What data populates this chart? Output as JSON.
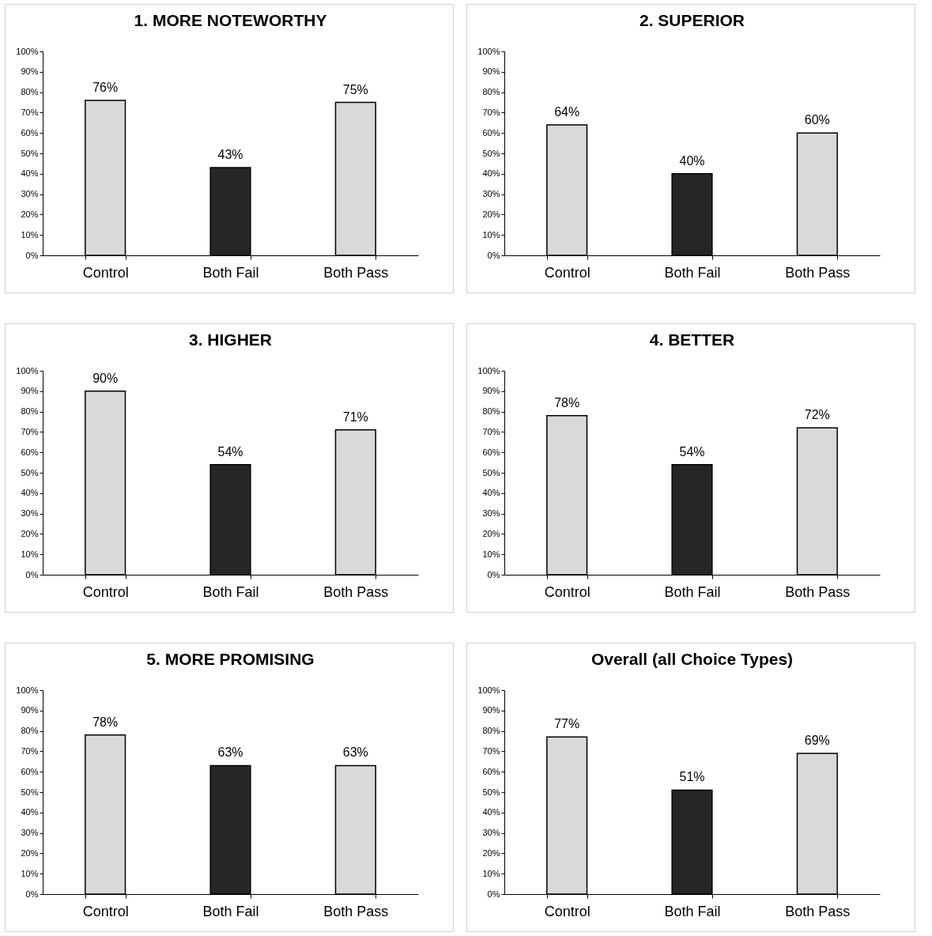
{
  "chart_data": [
    {
      "type": "bar",
      "title": "1. MORE NOTEWORTHY",
      "categories": [
        "Control",
        "Both Fail",
        "Both Pass"
      ],
      "values": [
        76,
        43,
        75
      ],
      "colors": [
        "#d9d9d9",
        "#262626",
        "#d9d9d9"
      ],
      "value_labels": [
        "76%",
        "43%",
        "75%"
      ],
      "ylim": [
        0,
        100
      ],
      "yticks": [
        {
          "value": 0,
          "label": "0%"
        },
        {
          "value": 10,
          "label": "10%"
        },
        {
          "value": 20,
          "label": "20%"
        },
        {
          "value": 30,
          "label": "30%"
        },
        {
          "value": 40,
          "label": "40%"
        },
        {
          "value": 50,
          "label": "50%"
        },
        {
          "value": 60,
          "label": "60%"
        },
        {
          "value": 70,
          "label": "70%"
        },
        {
          "value": 80,
          "label": "80%"
        },
        {
          "value": 90,
          "label": "90%"
        },
        {
          "value": 100,
          "label": "100%"
        }
      ]
    },
    {
      "type": "bar",
      "title": "2. SUPERIOR",
      "categories": [
        "Control",
        "Both Fail",
        "Both Pass"
      ],
      "values": [
        64,
        40,
        60
      ],
      "colors": [
        "#d9d9d9",
        "#262626",
        "#d9d9d9"
      ],
      "value_labels": [
        "64%",
        "40%",
        "60%"
      ],
      "ylim": [
        0,
        100
      ],
      "yticks": [
        {
          "value": 0,
          "label": "0%"
        },
        {
          "value": 10,
          "label": "10%"
        },
        {
          "value": 20,
          "label": "20%"
        },
        {
          "value": 30,
          "label": "30%"
        },
        {
          "value": 40,
          "label": "40%"
        },
        {
          "value": 50,
          "label": "50%"
        },
        {
          "value": 60,
          "label": "60%"
        },
        {
          "value": 70,
          "label": "70%"
        },
        {
          "value": 80,
          "label": "80%"
        },
        {
          "value": 90,
          "label": "90%"
        },
        {
          "value": 100,
          "label": "100%"
        }
      ]
    },
    {
      "type": "bar",
      "title": "3. HIGHER",
      "categories": [
        "Control",
        "Both Fail",
        "Both Pass"
      ],
      "values": [
        90,
        54,
        71
      ],
      "colors": [
        "#d9d9d9",
        "#262626",
        "#d9d9d9"
      ],
      "value_labels": [
        "90%",
        "54%",
        "71%"
      ],
      "ylim": [
        0,
        100
      ],
      "yticks": [
        {
          "value": 0,
          "label": "0%"
        },
        {
          "value": 10,
          "label": "10%"
        },
        {
          "value": 20,
          "label": "20%"
        },
        {
          "value": 30,
          "label": "30%"
        },
        {
          "value": 40,
          "label": "40%"
        },
        {
          "value": 50,
          "label": "50%"
        },
        {
          "value": 60,
          "label": "60%"
        },
        {
          "value": 70,
          "label": "70%"
        },
        {
          "value": 80,
          "label": "80%"
        },
        {
          "value": 90,
          "label": "90%"
        },
        {
          "value": 100,
          "label": "100%"
        }
      ]
    },
    {
      "type": "bar",
      "title": "4. BETTER",
      "categories": [
        "Control",
        "Both Fail",
        "Both Pass"
      ],
      "values": [
        78,
        54,
        72
      ],
      "colors": [
        "#d9d9d9",
        "#262626",
        "#d9d9d9"
      ],
      "value_labels": [
        "78%",
        "54%",
        "72%"
      ],
      "ylim": [
        0,
        100
      ],
      "yticks": [
        {
          "value": 0,
          "label": "0%"
        },
        {
          "value": 10,
          "label": "10%"
        },
        {
          "value": 20,
          "label": "20%"
        },
        {
          "value": 30,
          "label": "30%"
        },
        {
          "value": 40,
          "label": "40%"
        },
        {
          "value": 50,
          "label": "50%"
        },
        {
          "value": 60,
          "label": "60%"
        },
        {
          "value": 70,
          "label": "70%"
        },
        {
          "value": 80,
          "label": "80%"
        },
        {
          "value": 90,
          "label": "90%"
        },
        {
          "value": 100,
          "label": "100%"
        }
      ]
    },
    {
      "type": "bar",
      "title": "5. MORE PROMISING",
      "categories": [
        "Control",
        "Both Fail",
        "Both Pass"
      ],
      "values": [
        78,
        63,
        63
      ],
      "colors": [
        "#d9d9d9",
        "#262626",
        "#d9d9d9"
      ],
      "value_labels": [
        "78%",
        "63%",
        "63%"
      ],
      "ylim": [
        0,
        100
      ],
      "yticks": [
        {
          "value": 0,
          "label": "0%"
        },
        {
          "value": 10,
          "label": "10%"
        },
        {
          "value": 20,
          "label": "20%"
        },
        {
          "value": 30,
          "label": "30%"
        },
        {
          "value": 40,
          "label": "40%"
        },
        {
          "value": 50,
          "label": "50%"
        },
        {
          "value": 60,
          "label": "60%"
        },
        {
          "value": 70,
          "label": "70%"
        },
        {
          "value": 80,
          "label": "80%"
        },
        {
          "value": 90,
          "label": "90%"
        },
        {
          "value": 100,
          "label": "100%"
        }
      ]
    },
    {
      "type": "bar",
      "title": "Overall (all Choice Types)",
      "categories": [
        "Control",
        "Both Fail",
        "Both Pass"
      ],
      "values": [
        77,
        51,
        69
      ],
      "colors": [
        "#d9d9d9",
        "#262626",
        "#d9d9d9"
      ],
      "value_labels": [
        "77%",
        "51%",
        "69%"
      ],
      "ylim": [
        0,
        100
      ],
      "yticks": [
        {
          "value": 0,
          "label": "0%"
        },
        {
          "value": 10,
          "label": "10%"
        },
        {
          "value": 20,
          "label": "20%"
        },
        {
          "value": 30,
          "label": "30%"
        },
        {
          "value": 40,
          "label": "40%"
        },
        {
          "value": 50,
          "label": "50%"
        },
        {
          "value": 60,
          "label": "60%"
        },
        {
          "value": 70,
          "label": "70%"
        },
        {
          "value": 80,
          "label": "80%"
        },
        {
          "value": 90,
          "label": "90%"
        },
        {
          "value": 100,
          "label": "100%"
        }
      ]
    }
  ]
}
